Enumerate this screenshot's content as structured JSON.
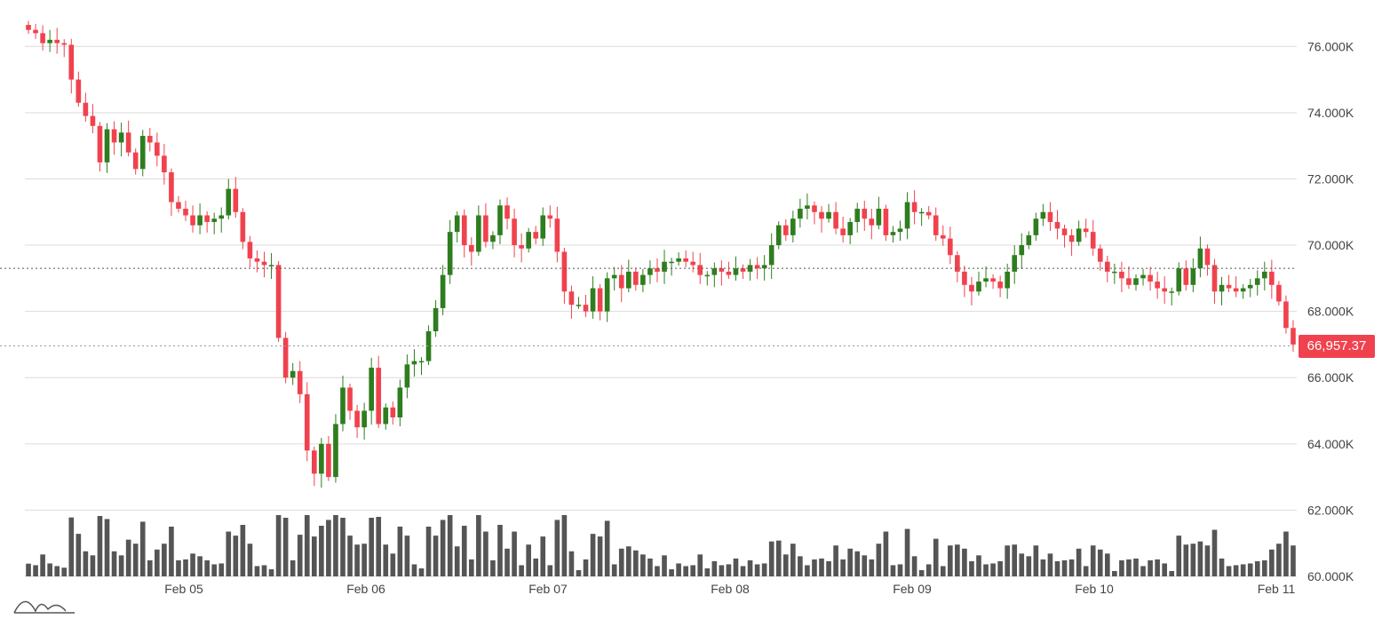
{
  "chart_data": {
    "type": "candlestick",
    "y_axis": {
      "side": "right",
      "range": [
        60000,
        77000
      ],
      "ticks": [
        "60.000K",
        "62.000K",
        "64.000K",
        "66.000K",
        "68.000K",
        "70.000K",
        "72.000K",
        "74.000K",
        "76.000K"
      ]
    },
    "x_axis": {
      "ticks": [
        "Feb 05",
        "Feb 06",
        "Feb 07",
        "Feb 08",
        "Feb 09",
        "Feb 10",
        "Feb 11"
      ]
    },
    "grid": "horizontal",
    "reference_price": 69300,
    "last_price": 66957.37,
    "last_price_label": "66,957.37",
    "colors": {
      "up": "#2e7d1e",
      "down": "#f0424e",
      "volume": "#555555",
      "last_price_bg": "#f0424e"
    },
    "candles_close": [
      76500,
      76400,
      76100,
      76200,
      76100,
      76050,
      75000,
      74300,
      73900,
      73600,
      72500,
      73500,
      73100,
      73400,
      72800,
      72300,
      73300,
      73100,
      72700,
      72200,
      71300,
      71100,
      70900,
      70600,
      70900,
      70700,
      70800,
      70900,
      71700,
      71000,
      70100,
      69600,
      69500,
      69400,
      69400,
      67200,
      66000,
      66200,
      65500,
      63800,
      63100,
      64000,
      63000,
      64600,
      65700,
      65000,
      64500,
      65000,
      66300,
      64600,
      65100,
      64800,
      65700,
      66400,
      66500,
      66500,
      67400,
      68100,
      69100,
      70400,
      70900,
      70000,
      69800,
      70900,
      70100,
      70300,
      71200,
      70800,
      70000,
      69900,
      70400,
      70200,
      70900,
      70800,
      69800,
      68600,
      68200,
      68200,
      68000,
      68700,
      68000,
      69000,
      69100,
      68700,
      69200,
      68800,
      69100,
      69300,
      69200,
      69500,
      69500,
      69600,
      69500,
      69400,
      69100,
      69100,
      69300,
      69200,
      69100,
      69300,
      69200,
      69400,
      69300,
      69400,
      70000,
      70600,
      70300,
      70800,
      71100,
      71200,
      71000,
      70800,
      71000,
      70500,
      70300,
      70700,
      71100,
      70800,
      70600,
      71100,
      70300,
      70400,
      70500,
      71300,
      71000,
      71000,
      70900,
      70300,
      70200,
      69700,
      69200,
      68800,
      68600,
      68900,
      69000,
      68900,
      68700,
      69200,
      69700,
      70000,
      70300,
      70800,
      71000,
      70700,
      70500,
      70300,
      70100,
      70500,
      70400,
      69900,
      69500,
      69200,
      69200,
      69000,
      68800,
      69000,
      69100,
      68900,
      68700,
      68600,
      68600,
      69300,
      68800,
      69300,
      69900,
      69400,
      68600,
      68800,
      68700,
      68600,
      68700,
      68800,
      69000,
      69200,
      68800,
      68300,
      67500,
      67000
    ]
  }
}
